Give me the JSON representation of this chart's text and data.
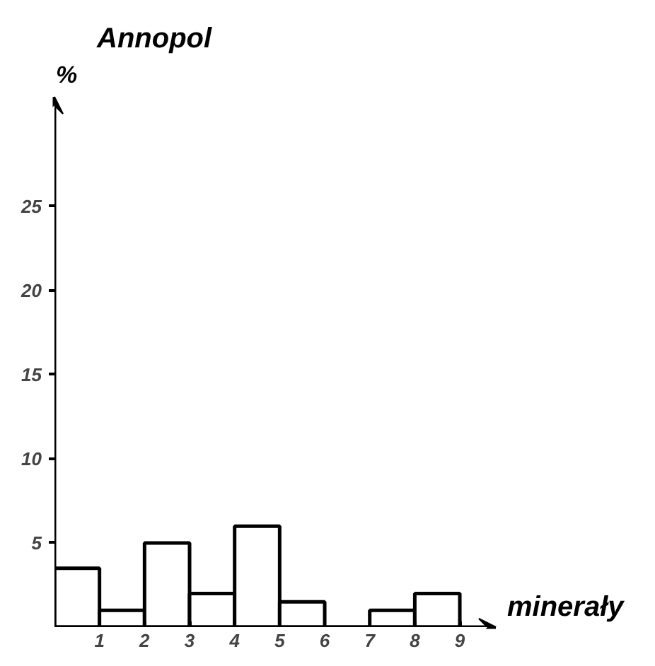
{
  "chart_data": {
    "type": "histogram",
    "title": "Annopol",
    "ylabel": "%",
    "xlabel": "minerały",
    "bins": [
      0,
      1,
      2,
      3,
      4,
      5,
      6,
      7,
      8,
      9
    ],
    "values": [
      3.5,
      1,
      5,
      2,
      6,
      1.5,
      0,
      1,
      2
    ],
    "color": "#ffffff",
    "xlim": [
      0,
      9.8
    ],
    "ylim": [
      0,
      31.5
    ],
    "xticks": [
      1,
      2,
      3,
      4,
      5,
      6,
      7,
      8,
      9
    ],
    "yticks": [
      5,
      10,
      15,
      20,
      25
    ],
    "grid": false
  }
}
